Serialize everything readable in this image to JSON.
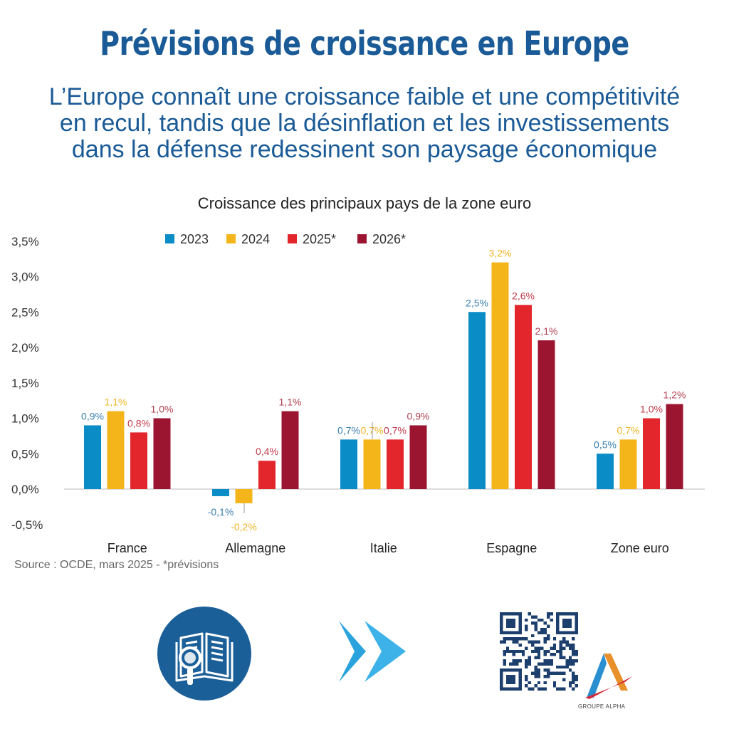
{
  "header": {
    "title": "Prévisions de croissance en Europe",
    "subtitle_lines": [
      "L’Europe connaît une croissance faible et une compétitivité",
      "en recul, tandis que la désinflation et les investissements",
      "dans la défense redessinent son paysage économique"
    ]
  },
  "chart_data": {
    "type": "bar",
    "title": "Croissance des principaux pays de la zone euro",
    "categories": [
      "France",
      "Allemagne",
      "Italie",
      "Espagne",
      "Zone euro"
    ],
    "series": [
      {
        "name": "2023",
        "color": "#0a8cc6",
        "values": [
          0.9,
          -0.1,
          0.7,
          2.5,
          0.5
        ],
        "labels": [
          "0,9%",
          "-0,1%",
          "0,7%",
          "2,5%",
          "0,5%"
        ],
        "label_color": "#3a7fb0"
      },
      {
        "name": "2024",
        "color": "#f3b519",
        "values": [
          1.1,
          -0.2,
          0.7,
          3.2,
          0.7
        ],
        "labels": [
          "1,1%",
          "-0,2%",
          "0,7%",
          "3,2%",
          "0,7%"
        ],
        "label_color": "#f0b424"
      },
      {
        "name": "2025*",
        "color": "#e3262c",
        "values": [
          0.8,
          0.4,
          0.7,
          2.6,
          1.0
        ],
        "labels": [
          "0,8%",
          "0,4%",
          "0,7%",
          "2,6%",
          "1,0%"
        ],
        "label_color": "#c0394a"
      },
      {
        "name": "2026*",
        "color": "#9c1530",
        "values": [
          1.0,
          1.1,
          0.9,
          2.1,
          1.2
        ],
        "labels": [
          "1,0%",
          "1,1%",
          "0,9%",
          "2,1%",
          "1,2%"
        ],
        "label_color": "#b0404f"
      }
    ],
    "yticks": [
      "3,5%",
      "3,0%",
      "2,5%",
      "2,0%",
      "1,5%",
      "1,0%",
      "0,5%",
      "0,0%",
      "-0,5%"
    ],
    "ytick_values": [
      3.5,
      3.0,
      2.5,
      2.0,
      1.5,
      1.0,
      0.5,
      0.0,
      -0.5
    ],
    "ylim": [
      -0.5,
      3.5
    ],
    "grid": false,
    "legend_position": "top"
  },
  "footer": {
    "source": "Source : OCDE, mars 2025 - *prévisions",
    "logo_text": "GROUPE ALPHA"
  },
  "icons": {
    "report": "book-magnifier-icon",
    "arrows": "double-chevron-right-icon",
    "qr": "qr-code-icon"
  }
}
